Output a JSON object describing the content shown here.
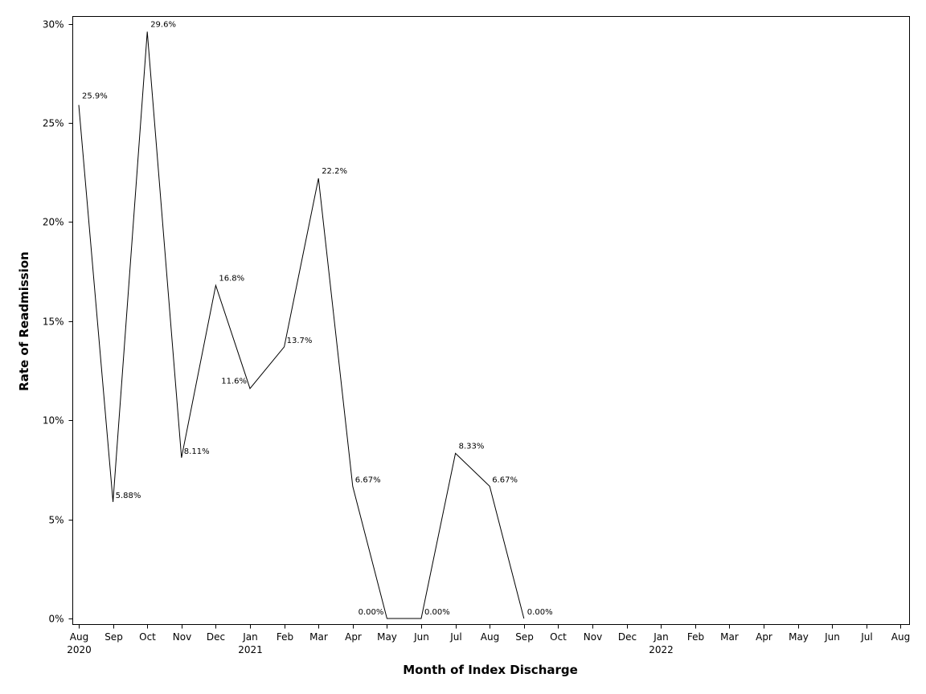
{
  "chart_data": {
    "type": "line",
    "title": "",
    "xlabel": "Month of Index Discharge",
    "ylabel": "Rate of Readmission",
    "ylim": [
      0,
      30
    ],
    "y_ticks": [
      {
        "value": 0,
        "label": "0%"
      },
      {
        "value": 5,
        "label": "5%"
      },
      {
        "value": 10,
        "label": "10%"
      },
      {
        "value": 15,
        "label": "15%"
      },
      {
        "value": 20,
        "label": "20%"
      },
      {
        "value": 25,
        "label": "25%"
      },
      {
        "value": 30,
        "label": "30%"
      }
    ],
    "x_ticks": [
      {
        "date": "2020-08",
        "label": "Aug",
        "year": "2020"
      },
      {
        "date": "2020-09",
        "label": "Sep",
        "year": ""
      },
      {
        "date": "2020-10",
        "label": "Oct",
        "year": ""
      },
      {
        "date": "2020-11",
        "label": "Nov",
        "year": ""
      },
      {
        "date": "2020-12",
        "label": "Dec",
        "year": ""
      },
      {
        "date": "2021-01",
        "label": "Jan",
        "year": "2021"
      },
      {
        "date": "2021-02",
        "label": "Feb",
        "year": ""
      },
      {
        "date": "2021-03",
        "label": "Mar",
        "year": ""
      },
      {
        "date": "2021-04",
        "label": "Apr",
        "year": ""
      },
      {
        "date": "2021-05",
        "label": "May",
        "year": ""
      },
      {
        "date": "2021-06",
        "label": "Jun",
        "year": ""
      },
      {
        "date": "2021-07",
        "label": "Jul",
        "year": ""
      },
      {
        "date": "2021-08",
        "label": "Aug",
        "year": ""
      },
      {
        "date": "2021-09",
        "label": "Sep",
        "year": ""
      },
      {
        "date": "2021-10",
        "label": "Oct",
        "year": ""
      },
      {
        "date": "2021-11",
        "label": "Nov",
        "year": ""
      },
      {
        "date": "2021-12",
        "label": "Dec",
        "year": ""
      },
      {
        "date": "2022-01",
        "label": "Jan",
        "year": "2022"
      },
      {
        "date": "2022-02",
        "label": "Feb",
        "year": ""
      },
      {
        "date": "2022-03",
        "label": "Mar",
        "year": ""
      },
      {
        "date": "2022-04",
        "label": "Apr",
        "year": ""
      },
      {
        "date": "2022-05",
        "label": "May",
        "year": ""
      },
      {
        "date": "2022-06",
        "label": "Jun",
        "year": ""
      },
      {
        "date": "2022-07",
        "label": "Jul",
        "year": ""
      },
      {
        "date": "2022-08",
        "label": "Aug",
        "year": ""
      }
    ],
    "series": [
      {
        "points": [
          {
            "x": "2020-08",
            "y": 25.9,
            "label": "25.9%"
          },
          {
            "x": "2020-09",
            "y": 5.88,
            "label": "5.88%"
          },
          {
            "x": "2020-10",
            "y": 29.6,
            "label": "29.6%"
          },
          {
            "x": "2020-11",
            "y": 8.11,
            "label": "8.11%"
          },
          {
            "x": "2020-12",
            "y": 16.8,
            "label": "16.8%"
          },
          {
            "x": "2021-01",
            "y": 11.6,
            "label": "11.6%"
          },
          {
            "x": "2021-02",
            "y": 13.7,
            "label": "13.7%"
          },
          {
            "x": "2021-03",
            "y": 22.2,
            "label": "22.2%"
          },
          {
            "x": "2021-04",
            "y": 6.67,
            "label": "6.67%"
          },
          {
            "x": "2021-05",
            "y": 0,
            "label": "0.00%"
          },
          {
            "x": "2021-06",
            "y": 0,
            "label": "0.00%"
          },
          {
            "x": "2021-07",
            "y": 8.33,
            "label": "8.33%"
          },
          {
            "x": "2021-08",
            "y": 6.67,
            "label": "6.67%"
          },
          {
            "x": "2021-09",
            "y": 0,
            "label": "0.00%"
          }
        ]
      }
    ],
    "grid": false,
    "line_color": "#000000"
  }
}
